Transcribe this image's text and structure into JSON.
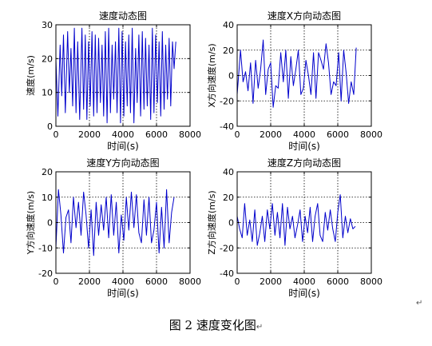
{
  "figure_caption": "图 2  速度变化图",
  "paragraph_mark": "↵",
  "colors": {
    "line": "#0000cc",
    "axes": "#000000",
    "grid": "#000000",
    "background": "#ffffff"
  },
  "chart_data": [
    {
      "type": "line",
      "title": "速度动态图",
      "xlabel": "时间(s)",
      "ylabel": "速度(m/s)",
      "xlim": [
        0,
        8000
      ],
      "ylim": [
        0,
        30
      ],
      "xticks": [
        0,
        2000,
        4000,
        6000,
        8000
      ],
      "yticks": [
        0,
        10,
        20,
        30
      ],
      "xtick_labels": [
        "0",
        "2000",
        "4000",
        "6000",
        "8000"
      ],
      "ytick_labels": [
        "0",
        "10",
        "20",
        "30"
      ],
      "grid": "dotted",
      "series": [
        {
          "x": [
            0,
            120,
            250,
            350,
            450,
            560,
            700,
            800,
            900,
            1000,
            1100,
            1200,
            1300,
            1420,
            1550,
            1650,
            1750,
            1850,
            1950,
            2050,
            2150,
            2250,
            2350,
            2450,
            2550,
            2650,
            2750,
            2850,
            2950,
            3050,
            3150,
            3250,
            3350,
            3450,
            3550,
            3650,
            3750,
            3850,
            3950,
            4050,
            4150,
            4250,
            4350,
            4450,
            4550,
            4650,
            4750,
            4850,
            4950,
            5050,
            5150,
            5250,
            5350,
            5450,
            5550,
            5650,
            5750,
            5850,
            5950,
            6050,
            6150,
            6250,
            6350,
            6450,
            6550,
            6650,
            6750,
            6850,
            6950,
            7050,
            7150
          ],
          "y": [
            20,
            3,
            24,
            9,
            27,
            4,
            28,
            10,
            23,
            6,
            29,
            4,
            25,
            2,
            29,
            5,
            27,
            2,
            25,
            6,
            28,
            3,
            27,
            4,
            26,
            7,
            24,
            3,
            28,
            1,
            29,
            4,
            24,
            8,
            25,
            4,
            29,
            1,
            28,
            3,
            25,
            6,
            27,
            4,
            29,
            1,
            23,
            7,
            27,
            3,
            28,
            5,
            26,
            6,
            24,
            2,
            29,
            4,
            27,
            7,
            25,
            3,
            28,
            5,
            24,
            8,
            26,
            6,
            25,
            17,
            25
          ]
        }
      ]
    },
    {
      "type": "line",
      "title": "速度X方向动态图",
      "xlabel": "时间(s)",
      "ylabel": "X方向速度(m/s)",
      "xlim": [
        0,
        8000
      ],
      "ylim": [
        -40,
        40
      ],
      "xticks": [
        0,
        2000,
        4000,
        6000,
        8000
      ],
      "yticks": [
        -40,
        -20,
        0,
        20,
        40
      ],
      "xtick_labels": [
        "0",
        "2000",
        "4000",
        "6000",
        "8000"
      ],
      "ytick_labels": [
        "-40",
        "-20",
        "0",
        "20",
        "40"
      ],
      "grid": "dotted",
      "series": [
        {
          "x": [
            0,
            200,
            350,
            500,
            650,
            800,
            950,
            1100,
            1250,
            1400,
            1550,
            1700,
            1850,
            2000,
            2150,
            2300,
            2450,
            2600,
            2750,
            2900,
            3050,
            3200,
            3350,
            3500,
            3650,
            3800,
            3950,
            4100,
            4250,
            4400,
            4550,
            4700,
            4850,
            5000,
            5150,
            5300,
            5450,
            5600,
            5750,
            5900,
            6050,
            6200,
            6350,
            6500,
            6650,
            6800,
            6950,
            7100
          ],
          "y": [
            -15,
            20,
            -5,
            3,
            -12,
            10,
            -22,
            12,
            -10,
            5,
            28,
            -15,
            5,
            10,
            -25,
            -8,
            -10,
            18,
            -5,
            20,
            -18,
            15,
            -8,
            5,
            20,
            -15,
            -10,
            12,
            0,
            -15,
            18,
            -18,
            18,
            12,
            5,
            25,
            10,
            -15,
            -5,
            -8,
            18,
            -20,
            20,
            2,
            -22,
            -5,
            -15,
            22
          ]
        }
      ]
    },
    {
      "type": "line",
      "title": "速度Y方向动态图",
      "xlabel": "时间(s)",
      "ylabel": "Y方向速度(m/s)",
      "xlim": [
        0,
        8000
      ],
      "ylim": [
        -20,
        20
      ],
      "xticks": [
        0,
        2000,
        4000,
        6000,
        8000
      ],
      "yticks": [
        -20,
        -10,
        0,
        10,
        20
      ],
      "xtick_labels": [
        "0",
        "2000",
        "4000",
        "6000",
        "8000"
      ],
      "ytick_labels": [
        "-20",
        "-10",
        "0",
        "10",
        "20"
      ],
      "grid": "dotted",
      "series": [
        {
          "x": [
            0,
            150,
            300,
            450,
            600,
            750,
            900,
            1050,
            1200,
            1350,
            1500,
            1650,
            1800,
            1950,
            2100,
            2250,
            2400,
            2550,
            2700,
            2850,
            3000,
            3150,
            3300,
            3450,
            3600,
            3750,
            3900,
            4050,
            4200,
            4350,
            4500,
            4650,
            4800,
            4950,
            5100,
            5250,
            5400,
            5550,
            5700,
            5850,
            6000,
            6150,
            6300,
            6450,
            6600,
            6750,
            6900,
            7050
          ],
          "y": [
            -10,
            13,
            3,
            -12,
            2,
            5,
            -8,
            10,
            -2,
            8,
            -5,
            12,
            3,
            -10,
            5,
            -13,
            8,
            -5,
            7,
            -3,
            10,
            -6,
            11,
            -5,
            8,
            -12,
            3,
            -7,
            10,
            -3,
            12,
            -2,
            11,
            -4,
            -8,
            9,
            -5,
            10,
            -8,
            -3,
            8,
            -12,
            6,
            -10,
            13,
            -8,
            4,
            10
          ]
        }
      ]
    },
    {
      "type": "line",
      "title": "速度Z方向动态图",
      "xlabel": "时间(s)",
      "ylabel": "Z方向速度(m/s)",
      "xlim": [
        0,
        8000
      ],
      "ylim": [
        -40,
        40
      ],
      "xticks": [
        0,
        2000,
        4000,
        6000,
        8000
      ],
      "yticks": [
        -40,
        -20,
        0,
        20,
        40
      ],
      "xtick_labels": [
        "0",
        "2000",
        "4000",
        "6000",
        "8000"
      ],
      "ytick_labels": [
        "-40",
        "-20",
        "0",
        "20",
        "40"
      ],
      "grid": "dotted",
      "series": [
        {
          "x": [
            0,
            150,
            300,
            450,
            600,
            750,
            900,
            1050,
            1200,
            1350,
            1500,
            1650,
            1800,
            1950,
            2100,
            2250,
            2400,
            2550,
            2700,
            2850,
            3000,
            3150,
            3300,
            3450,
            3600,
            3750,
            3900,
            4050,
            4200,
            4350,
            4500,
            4650,
            4800,
            4950,
            5100,
            5250,
            5400,
            5550,
            5700,
            5850,
            6000,
            6150,
            6300,
            6450,
            6600,
            6750,
            6900,
            7050
          ],
          "y": [
            5,
            -5,
            -12,
            15,
            -10,
            2,
            -15,
            10,
            -18,
            -8,
            5,
            -15,
            10,
            -5,
            15,
            -10,
            8,
            -12,
            15,
            -18,
            12,
            -5,
            5,
            -12,
            -2,
            10,
            -15,
            5,
            -8,
            12,
            -15,
            5,
            15,
            -10,
            -15,
            8,
            -6,
            10,
            -5,
            -15,
            8,
            22,
            -12,
            5,
            -8,
            3,
            -5,
            -3
          ]
        }
      ]
    }
  ]
}
